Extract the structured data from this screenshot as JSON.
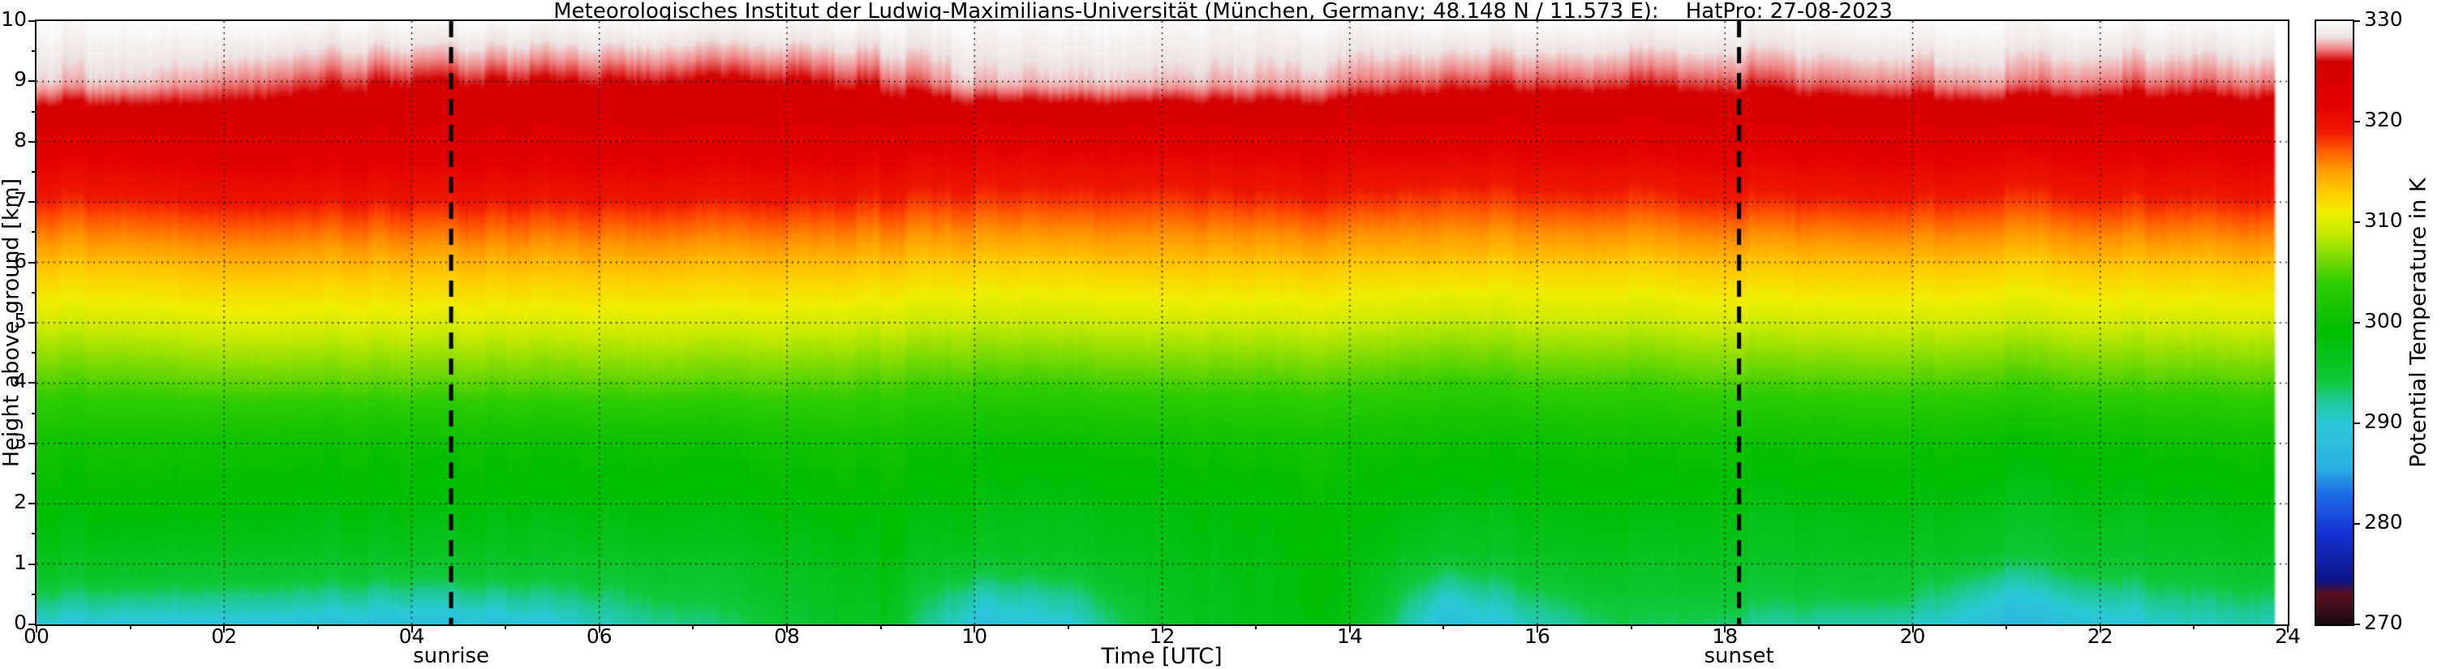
{
  "chart_data": {
    "type": "heatmap",
    "title": "Meteorologisches Institut der Ludwig-Maximilians-Universität (München, Germany; 48.148 N / 11.573 E):    HatPro: 27-08-2023",
    "xlabel": "Time [UTC]",
    "ylabel": "Height above ground [km]",
    "colorbar_label": "Potential Temperature in K",
    "x_range": [
      0,
      24
    ],
    "y_range": [
      0,
      10
    ],
    "colorbar_range": [
      270,
      330
    ],
    "grid": true,
    "x_ticks": [
      "00",
      "02",
      "04",
      "06",
      "08",
      "10",
      "12",
      "14",
      "16",
      "18",
      "20",
      "22",
      "24"
    ],
    "y_ticks": [
      "0",
      "1",
      "2",
      "3",
      "4",
      "5",
      "6",
      "7",
      "8",
      "9",
      "10"
    ],
    "colorbar_ticks": [
      270,
      280,
      290,
      300,
      310,
      320,
      330
    ],
    "annotations": [
      {
        "label": "sunrise",
        "time_utc": 4.42
      },
      {
        "label": "sunset",
        "time_utc": 18.15
      }
    ],
    "colormap": [
      [
        270.0,
        "#1a0a12"
      ],
      [
        273.0,
        "#5a1020"
      ],
      [
        274.3,
        "#0c1488"
      ],
      [
        279.0,
        "#1432d2"
      ],
      [
        283.0,
        "#1e6ee6"
      ],
      [
        285.5,
        "#28b0e0"
      ],
      [
        290.0,
        "#2cc8d8"
      ],
      [
        292.5,
        "#1ec88e"
      ],
      [
        294.0,
        "#12c83e"
      ],
      [
        299.0,
        "#00be00"
      ],
      [
        304.0,
        "#2ecc00"
      ],
      [
        306.5,
        "#7cda00"
      ],
      [
        309.0,
        "#c8ea00"
      ],
      [
        311.0,
        "#f0ee00"
      ],
      [
        313.0,
        "#ffcc00"
      ],
      [
        315.5,
        "#ff9400"
      ],
      [
        317.5,
        "#ff4e00"
      ],
      [
        319.0,
        "#ee1800"
      ],
      [
        322.0,
        "#e10000"
      ],
      [
        326.0,
        "#d40000"
      ],
      [
        327.3,
        "#ee8888"
      ],
      [
        328.5,
        "#eee4e4"
      ],
      [
        330.0,
        "#fafafa"
      ]
    ],
    "times": [
      0,
      1,
      2,
      3,
      4,
      5,
      6,
      7,
      8,
      9,
      10,
      11,
      12,
      13,
      14,
      15,
      16,
      17,
      18,
      19,
      20,
      21,
      22,
      23,
      24
    ],
    "data_end_time": 23.87,
    "heights_km": [
      0,
      0.4,
      0.8,
      1.2,
      2,
      3,
      4,
      5,
      6,
      7,
      8,
      9,
      10
    ],
    "theta_K": [
      [
        290,
        289.5,
        289,
        289,
        288.5,
        289,
        291,
        293,
        295,
        296.5,
        289,
        290,
        296,
        297.5,
        298,
        288,
        291,
        294,
        293,
        292,
        291,
        287.5,
        289,
        291,
        291
      ],
      [
        293,
        292.5,
        292,
        292,
        291.5,
        292,
        293,
        294.5,
        296,
        297,
        291,
        292,
        296.5,
        298,
        298.5,
        290,
        293,
        295,
        294.5,
        294,
        293.5,
        289.5,
        291.5,
        293,
        293
      ],
      [
        295.5,
        295.5,
        295,
        295,
        294.5,
        295,
        295,
        295.5,
        296.5,
        297.5,
        294,
        294.5,
        297,
        298,
        298.5,
        293,
        295,
        296,
        295.5,
        295.5,
        295,
        292.5,
        294,
        295,
        295
      ],
      [
        297,
        297,
        296.5,
        296.5,
        296.5,
        296.5,
        296.5,
        297,
        297.5,
        298,
        296.5,
        296.5,
        297.5,
        298.5,
        299,
        295.5,
        296.5,
        297,
        296.5,
        296.5,
        296.5,
        295,
        295.5,
        296.5,
        296.5
      ],
      [
        299,
        299,
        298.5,
        298.5,
        298.5,
        298.5,
        298.5,
        298.5,
        299,
        299,
        298,
        297.5,
        298.5,
        299,
        299.5,
        297.5,
        298,
        298.5,
        298,
        298,
        298,
        297,
        297.5,
        298,
        298
      ],
      [
        301,
        301,
        300.5,
        300.5,
        300.5,
        300.5,
        300.5,
        300.5,
        301,
        301,
        300,
        300,
        300.5,
        301,
        301,
        300,
        300,
        300.5,
        300.5,
        300.5,
        300.5,
        299.5,
        300,
        300.5,
        300.5
      ],
      [
        305,
        305,
        305.5,
        305.5,
        305.5,
        305.5,
        305.5,
        305.5,
        305.5,
        305,
        304.5,
        304.5,
        305,
        305,
        305,
        304,
        304.5,
        304.5,
        305,
        305,
        305,
        304.5,
        305,
        305,
        305
      ],
      [
        309.5,
        309.5,
        310,
        310,
        310,
        310,
        310,
        310,
        310,
        309.5,
        309,
        309,
        309.5,
        309.5,
        309.5,
        308.5,
        309,
        309,
        309.5,
        309.5,
        309.5,
        309,
        309.5,
        309.5,
        309.5
      ],
      [
        313.5,
        313.5,
        314,
        314,
        314,
        314,
        314,
        314,
        314,
        313.5,
        313,
        313,
        313.5,
        313.5,
        313.5,
        313,
        313,
        313,
        313.5,
        313.5,
        313.5,
        313,
        313.5,
        313.5,
        313.5
      ],
      [
        318.5,
        318.5,
        319,
        319,
        319,
        319,
        319,
        319,
        319,
        318.5,
        318,
        318,
        318,
        318.5,
        318.5,
        317.5,
        318,
        318,
        318.5,
        318.5,
        318.5,
        318,
        318.5,
        318.5,
        318.5
      ],
      [
        322.5,
        322.5,
        323,
        323,
        323,
        323,
        323,
        323,
        323,
        322.5,
        322,
        322,
        322,
        322.5,
        322.5,
        322,
        322,
        322,
        322.5,
        322.5,
        322.5,
        322,
        322.5,
        322.5,
        322.5
      ],
      [
        328,
        328,
        327,
        326.5,
        326,
        326,
        326,
        326,
        326,
        326.5,
        328,
        328,
        328,
        328,
        327.5,
        326.5,
        326.5,
        326.5,
        326.5,
        327,
        327,
        327.5,
        327,
        327,
        327
      ],
      [
        330,
        330,
        330,
        330,
        330,
        330,
        330,
        330,
        330,
        330,
        330,
        330,
        330,
        330,
        330,
        330,
        330,
        330,
        330,
        330,
        330,
        330,
        330,
        330,
        330
      ]
    ]
  }
}
